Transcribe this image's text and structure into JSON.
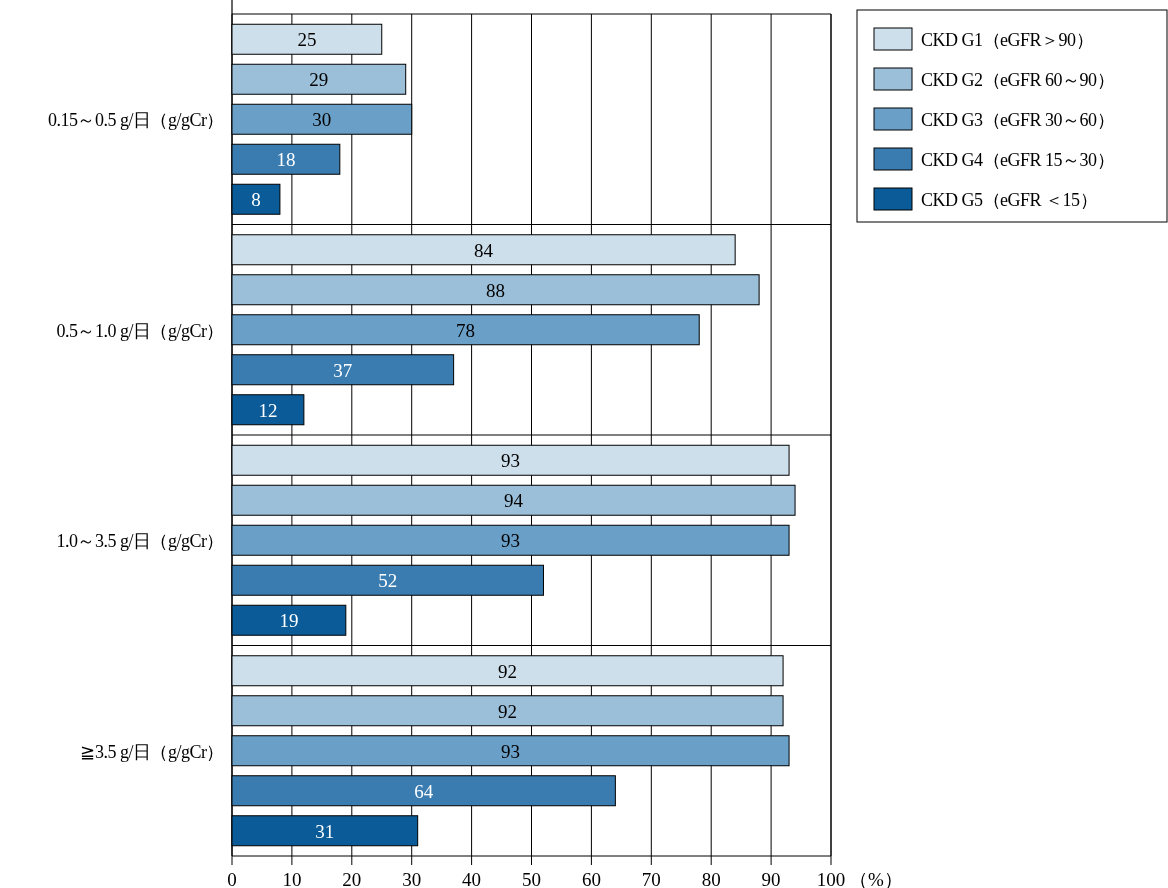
{
  "chart_data": {
    "type": "bar",
    "orientation": "horizontal",
    "categories": [
      "0.15～0.5 g/日（g/gCr）",
      "0.5～1.0 g/日（g/gCr）",
      "1.0～3.5 g/日（g/gCr）",
      "≧3.5 g/日（g/gCr）"
    ],
    "series": [
      {
        "name": "CKD G1（eGFR＞90）",
        "color": "#cddfeb",
        "values": [
          25,
          84,
          93,
          92
        ]
      },
      {
        "name": "CKD G2（eGFR 60～90）",
        "color": "#9bbfd9",
        "values": [
          29,
          88,
          94,
          92
        ]
      },
      {
        "name": "CKD G3（eGFR 30～60）",
        "color": "#6a9fc8",
        "values": [
          30,
          78,
          93,
          93
        ]
      },
      {
        "name": "CKD G4（eGFR 15～30）",
        "color": "#3a7cb0",
        "values": [
          18,
          37,
          52,
          64
        ]
      },
      {
        "name": "CKD G5（eGFR ＜15）",
        "color": "#0a5b98",
        "values": [
          8,
          12,
          19,
          31
        ]
      }
    ],
    "xlim": [
      0,
      100
    ],
    "xticks": [
      0,
      10,
      20,
      30,
      40,
      50,
      60,
      70,
      80,
      90,
      100
    ],
    "xlabel": "（%）",
    "grid": "x",
    "legend": "top right",
    "data_labels": true
  }
}
